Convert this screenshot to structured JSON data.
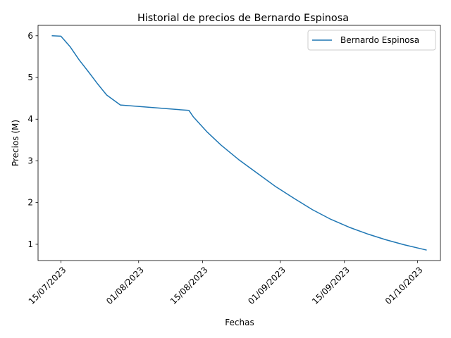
{
  "chart_data": {
    "type": "line",
    "title": "Historial de precios de Bernardo Espinosa",
    "xlabel": "Fechas",
    "ylabel": "Precios (M)",
    "x_ticks": [
      "15/07/2023",
      "01/08/2023",
      "15/08/2023",
      "01/09/2023",
      "15/09/2023",
      "01/10/2023"
    ],
    "y_ticks": [
      "1",
      "2",
      "3",
      "4",
      "5",
      "6"
    ],
    "ylim": [
      0.61,
      6.25
    ],
    "xlim": [
      "2023-07-10",
      "2023-10-06"
    ],
    "legend_position": "top-right",
    "grid": false,
    "series": [
      {
        "name": "Bernardo Espinosa",
        "color": "#1f77b4",
        "x": [
          "2023-07-13",
          "2023-07-15",
          "2023-07-17",
          "2023-07-19",
          "2023-07-21",
          "2023-07-23",
          "2023-07-25",
          "2023-07-27",
          "2023-07-28",
          "2023-08-12",
          "2023-08-13",
          "2023-08-16",
          "2023-08-19",
          "2023-08-23",
          "2023-08-27",
          "2023-08-31",
          "2023-09-04",
          "2023-09-08",
          "2023-09-12",
          "2023-09-16",
          "2023-09-20",
          "2023-09-24",
          "2023-09-28",
          "2023-10-03"
        ],
        "y": [
          6.0,
          5.99,
          5.74,
          5.42,
          5.14,
          4.85,
          4.58,
          4.42,
          4.34,
          4.21,
          4.05,
          3.69,
          3.38,
          3.02,
          2.7,
          2.38,
          2.1,
          1.83,
          1.6,
          1.41,
          1.25,
          1.11,
          0.99,
          0.86
        ]
      }
    ]
  }
}
